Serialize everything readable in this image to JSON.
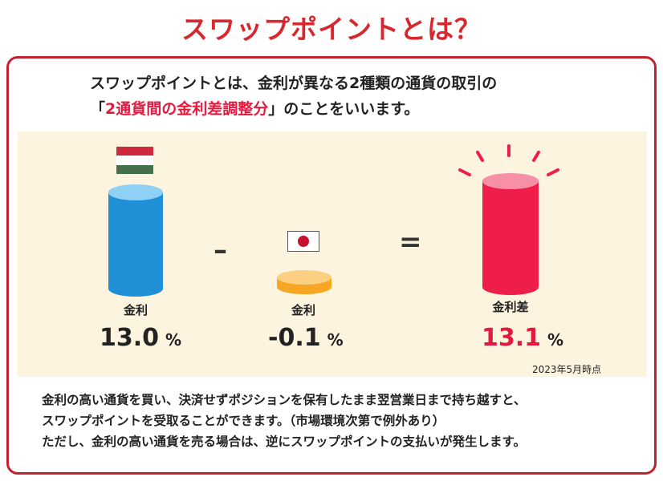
{
  "title": "スワップポイントとは？",
  "intro": {
    "line1": "スワップポイントとは、金利が異なる2種類の通貨の取引の",
    "open_bracket": "「",
    "highlight": "2通貨間の金利差調整分",
    "line2_rest": "」のことをいいます。"
  },
  "diagram": {
    "left": {
      "label": "金利",
      "value": "13.0",
      "unit": "%",
      "flag_icon": "hungary-flag-icon",
      "color": "#1f8fd6"
    },
    "minus_symbol": "–",
    "middle": {
      "label": "金利",
      "value": "-0.1",
      "unit": "%",
      "flag_icon": "japan-flag-icon",
      "color": "#f6a623"
    },
    "equals_symbol": "=",
    "right": {
      "label": "金利差",
      "value": "13.1",
      "unit": "%",
      "color": "#ef1d49"
    },
    "date_note": "2023年5月時点"
  },
  "body_text": [
    "金利の高い通貨を買い、決済せずポジションを保有したまま翌営業日まで持ち越すと、",
    "スワップポイントを受取ることができます。（市場環境次第で例外あり）",
    "ただし、金利の高い通貨を売る場合は、逆にスワップポイントの支払いが発生します。"
  ],
  "colors": {
    "accent": "#d8282f",
    "highlight": "#e3193f",
    "border": "#c0232e",
    "panel": "#fdf4df"
  }
}
